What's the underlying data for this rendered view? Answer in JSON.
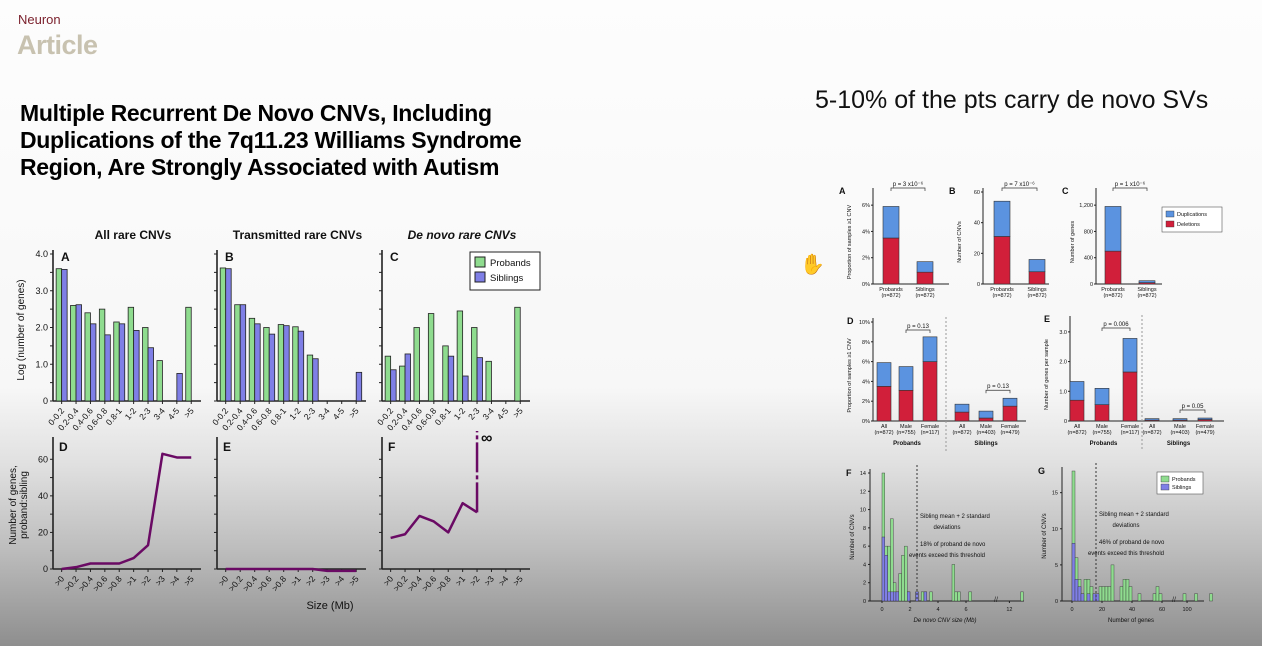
{
  "header": {
    "journal": "Neuron",
    "section": "Article"
  },
  "paper_title": "Multiple Recurrent De Novo CNVs, Including Duplications of the 7q11.23 Williams Syndrome Region, Are Strongly Associated with Autism",
  "slide_title": "5-10% of the pts carry de novo SVs",
  "cursor_icon": "hand-cursor-icon",
  "colors": {
    "probands": "#8fdc8f",
    "siblings": "#7f7fe6",
    "line": "#6a0a64",
    "duplications": "#5b93e0",
    "deletions": "#d11f3a"
  },
  "chart_data": [
    {
      "id": "A",
      "type": "bar",
      "panel": "A",
      "title": "All rare CNVs",
      "ylabel": "Log (number of genes)",
      "ylim": [
        0,
        4
      ],
      "yticks": [
        "0",
        "1.0",
        "2.0",
        "3.0",
        "4.0"
      ],
      "categories": [
        "0-0.2",
        "0.2-0.4",
        "0.4-0.6",
        "0.6-0.8",
        "0.8-1",
        "1-2",
        "2-3",
        "3-4",
        "4-5",
        ">5"
      ],
      "series": [
        {
          "name": "Probands",
          "values": [
            3.6,
            2.6,
            2.4,
            2.5,
            2.15,
            2.55,
            2.0,
            1.1,
            null,
            2.55
          ]
        },
        {
          "name": "Siblings",
          "values": [
            3.58,
            2.62,
            2.1,
            1.8,
            2.1,
            1.92,
            1.45,
            null,
            0.75,
            null
          ]
        }
      ]
    },
    {
      "id": "B",
      "type": "bar",
      "panel": "B",
      "title": "Transmitted rare CNVs",
      "ylim": [
        0,
        4
      ],
      "categories": [
        "0-0.2",
        "0.2-0.4",
        "0.4-0.6",
        "0.6-0.8",
        "0.8-1",
        "1-2",
        "2-3",
        "3-4",
        "4-5",
        ">5"
      ],
      "series": [
        {
          "name": "Probands",
          "values": [
            3.62,
            2.62,
            2.25,
            2.0,
            2.08,
            2.02,
            1.25,
            null,
            null,
            null
          ]
        },
        {
          "name": "Siblings",
          "values": [
            3.6,
            2.62,
            2.1,
            1.82,
            2.05,
            1.9,
            1.15,
            null,
            null,
            0.78
          ]
        }
      ]
    },
    {
      "id": "C",
      "type": "bar",
      "panel": "C",
      "title": "De novo rare CNVs",
      "ylim": [
        0,
        4
      ],
      "legend": "top-right",
      "categories": [
        "0-0.2",
        "0.2-0.4",
        "0.4-0.6",
        "0.6-0.8",
        "0.8-1",
        "1-2",
        "2-3",
        "3-4",
        "4-5",
        ">5"
      ],
      "series": [
        {
          "name": "Probands",
          "values": [
            1.22,
            0.95,
            2.0,
            2.38,
            1.5,
            2.45,
            2.0,
            1.08,
            null,
            2.55
          ]
        },
        {
          "name": "Siblings",
          "values": [
            0.85,
            1.28,
            null,
            null,
            1.22,
            0.68,
            1.18,
            null,
            null,
            null
          ]
        }
      ]
    },
    {
      "id": "D",
      "type": "line",
      "panel": "D",
      "ylabel": "Number of genes, proband:sibling",
      "ylim": [
        0,
        70
      ],
      "yticks": [
        "0",
        "20",
        "40",
        "60"
      ],
      "xlabel": "Size (Mb)",
      "categories": [
        ">0",
        ">0.2",
        ">0.4",
        ">0.6",
        ">0.8",
        ">1",
        ">2",
        ">3",
        ">4",
        ">5"
      ],
      "values": [
        0,
        1,
        3,
        3,
        3,
        6,
        13,
        63,
        61,
        61
      ]
    },
    {
      "id": "E",
      "type": "line",
      "panel": "E",
      "ylim": [
        0,
        70
      ],
      "categories": [
        ">0",
        ">0.2",
        ">0.4",
        ">0.6",
        ">0.8",
        ">1",
        ">2",
        ">3",
        ">4",
        ">5"
      ],
      "values": [
        0,
        0,
        0,
        0,
        0,
        0,
        0,
        -1,
        -1,
        -1
      ]
    },
    {
      "id": "F",
      "type": "line",
      "panel": "F",
      "ylim": [
        0,
        70
      ],
      "annotation": "∞",
      "categories": [
        ">0",
        ">0.2",
        ">0.4",
        ">0.6",
        ">0.8",
        ">1",
        ">2",
        ">3",
        ">4",
        ">5"
      ],
      "values": [
        17,
        19,
        29,
        26,
        20,
        36,
        31,
        null,
        null,
        null
      ]
    },
    {
      "id": "rA",
      "type": "stacked-bar",
      "panel": "A",
      "ylabel": "Proportion of samples ≥1 CNV",
      "ylim": [
        0,
        7
      ],
      "yticks": [
        "0%",
        "2%",
        "4%",
        "6%"
      ],
      "pvalues": [
        "p = 3 x10⁻⁶"
      ],
      "categories": [
        "Probands (n=872)",
        "Siblings (n=872)"
      ],
      "series": [
        {
          "name": "Deletions",
          "values": [
            3.5,
            0.9
          ]
        },
        {
          "name": "Duplications",
          "values": [
            2.4,
            0.8
          ]
        }
      ]
    },
    {
      "id": "rB",
      "type": "stacked-bar",
      "panel": "B",
      "ylabel": "Number of CNVs",
      "ylim": [
        0,
        60
      ],
      "yticks": [
        "0",
        "20",
        "40",
        "60"
      ],
      "pvalues": [
        "p = 7 x10⁻⁶"
      ],
      "categories": [
        "Probands (n=872)",
        "Siblings (n=872)"
      ],
      "series": [
        {
          "name": "Deletions",
          "values": [
            31,
            8
          ]
        },
        {
          "name": "Duplications",
          "values": [
            23,
            8
          ]
        }
      ]
    },
    {
      "id": "rC",
      "type": "stacked-bar",
      "panel": "C",
      "ylabel": "Number of genes",
      "ylim": [
        0,
        1400
      ],
      "yticks": [
        "0",
        "400",
        "800",
        "1,200"
      ],
      "pvalues": [
        "p = 1 x10⁻⁶"
      ],
      "legend": "right",
      "categories": [
        "Probands (n=872)",
        "Siblings (n=872)"
      ],
      "series": [
        {
          "name": "Deletions",
          "values": [
            500,
            20
          ]
        },
        {
          "name": "Duplications",
          "values": [
            680,
            30
          ]
        }
      ]
    },
    {
      "id": "rD",
      "type": "stacked-bar",
      "panel": "D",
      "ylabel": "Proportion of samples ≥1 CNV",
      "ylim": [
        0,
        10
      ],
      "yticks": [
        "0%",
        "2%",
        "4%",
        "6%",
        "8%",
        "10%"
      ],
      "pvalues": [
        "p = 0.13",
        "p = 0.13"
      ],
      "groups": [
        "Probands",
        "Siblings"
      ],
      "categories": [
        "All (n=872)",
        "Male (n=755)",
        "Female (n=117)",
        "All (n=872)",
        "Male (n=403)",
        "Female (n=479)"
      ],
      "series": [
        {
          "name": "Deletions",
          "values": [
            3.5,
            3.1,
            6.0,
            0.9,
            0.3,
            1.5
          ]
        },
        {
          "name": "Duplications",
          "values": [
            2.4,
            2.4,
            2.5,
            0.8,
            0.7,
            0.8
          ]
        }
      ]
    },
    {
      "id": "rE",
      "type": "stacked-bar",
      "panel": "E",
      "ylabel": "Number of genes per sample",
      "ylim": [
        0,
        3.4
      ],
      "yticks": [
        "0",
        "1.0",
        "2.0",
        "3.0"
      ],
      "pvalues": [
        "p = 0.006",
        "p = 0.05"
      ],
      "groups": [
        "Probands",
        "Siblings"
      ],
      "categories": [
        "All (n=872)",
        "Male (n=755)",
        "Female (n=117)",
        "All (n=872)",
        "Male (n=403)",
        "Female (n=479)"
      ],
      "series": [
        {
          "name": "Deletions",
          "values": [
            0.7,
            0.55,
            1.65,
            0.03,
            0.03,
            0.05
          ]
        },
        {
          "name": "Duplications",
          "values": [
            0.63,
            0.55,
            1.13,
            0.05,
            0.05,
            0.05
          ]
        }
      ]
    },
    {
      "id": "rF",
      "type": "histogram",
      "panel": "F",
      "xlabel": "De novo CNV size (Mb)",
      "ylabel": "Number of CNVs",
      "ylim": [
        0,
        14
      ],
      "xticks": [
        "0",
        "2",
        "4",
        "6",
        "12"
      ],
      "yticks": [
        "0",
        "2",
        "4",
        "6",
        "8",
        "10",
        "12",
        "14"
      ],
      "threshold": 2.5,
      "bin_width": 0.2,
      "annotations": [
        "Sibling mean + 2 standard",
        "deviations",
        "18% of proband de novo",
        "events exceed this threshold"
      ],
      "series": [
        {
          "name": "Probands",
          "bins": [
            [
              0,
              14
            ],
            [
              0.2,
              6
            ],
            [
              0.4,
              6
            ],
            [
              0.6,
              9
            ],
            [
              0.8,
              2
            ],
            [
              1.0,
              1
            ],
            [
              1.2,
              3
            ],
            [
              1.4,
              5
            ],
            [
              1.6,
              6
            ],
            [
              1.8,
              1
            ],
            [
              2.4,
              1
            ],
            [
              2.8,
              1
            ],
            [
              3.0,
              1
            ],
            [
              3.4,
              1
            ],
            [
              5.0,
              4
            ],
            [
              5.2,
              1
            ],
            [
              5.4,
              1
            ],
            [
              6.2,
              1
            ],
            [
              12.8,
              1
            ]
          ]
        },
        {
          "name": "Siblings",
          "bins": [
            [
              0,
              7
            ],
            [
              0.2,
              5
            ],
            [
              0.4,
              1
            ],
            [
              0.6,
              1
            ],
            [
              0.8,
              1
            ],
            [
              1.0,
              1
            ],
            [
              1.8,
              1
            ],
            [
              2.4,
              1
            ],
            [
              3.0,
              1
            ]
          ]
        }
      ]
    },
    {
      "id": "rG",
      "type": "histogram",
      "panel": "G",
      "xlabel": "Number of genes",
      "ylabel": "Number of CNVs",
      "ylim": [
        0,
        18
      ],
      "xticks": [
        "0",
        "20",
        "40",
        "60",
        "100"
      ],
      "yticks": [
        "0",
        "5",
        "10",
        "15"
      ],
      "threshold": 16,
      "bin_width": 2,
      "legend": "top-right",
      "annotations": [
        "Sibling mean + 2 standard",
        "deviations",
        "46% of proband de novo",
        "events exceed this threshold"
      ],
      "series": [
        {
          "name": "Probands",
          "bins": [
            [
              0,
              18
            ],
            [
              2,
              6
            ],
            [
              4,
              3
            ],
            [
              6,
              1
            ],
            [
              8,
              3
            ],
            [
              10,
              3
            ],
            [
              12,
              2
            ],
            [
              14,
              1
            ],
            [
              16,
              1
            ],
            [
              18,
              2
            ],
            [
              20,
              2
            ],
            [
              22,
              2
            ],
            [
              24,
              2
            ],
            [
              26,
              5
            ],
            [
              32,
              2
            ],
            [
              34,
              3
            ],
            [
              36,
              3
            ],
            [
              38,
              2
            ],
            [
              44,
              1
            ],
            [
              54,
              1
            ],
            [
              56,
              2
            ],
            [
              58,
              1
            ],
            [
              74,
              1
            ],
            [
              105,
              1
            ],
            [
              115,
              1
            ]
          ]
        },
        {
          "name": "Siblings",
          "bins": [
            [
              0,
              8
            ],
            [
              2,
              3
            ],
            [
              4,
              2
            ],
            [
              6,
              1
            ],
            [
              10,
              1
            ],
            [
              14,
              1
            ],
            [
              16,
              1
            ]
          ]
        }
      ]
    }
  ]
}
